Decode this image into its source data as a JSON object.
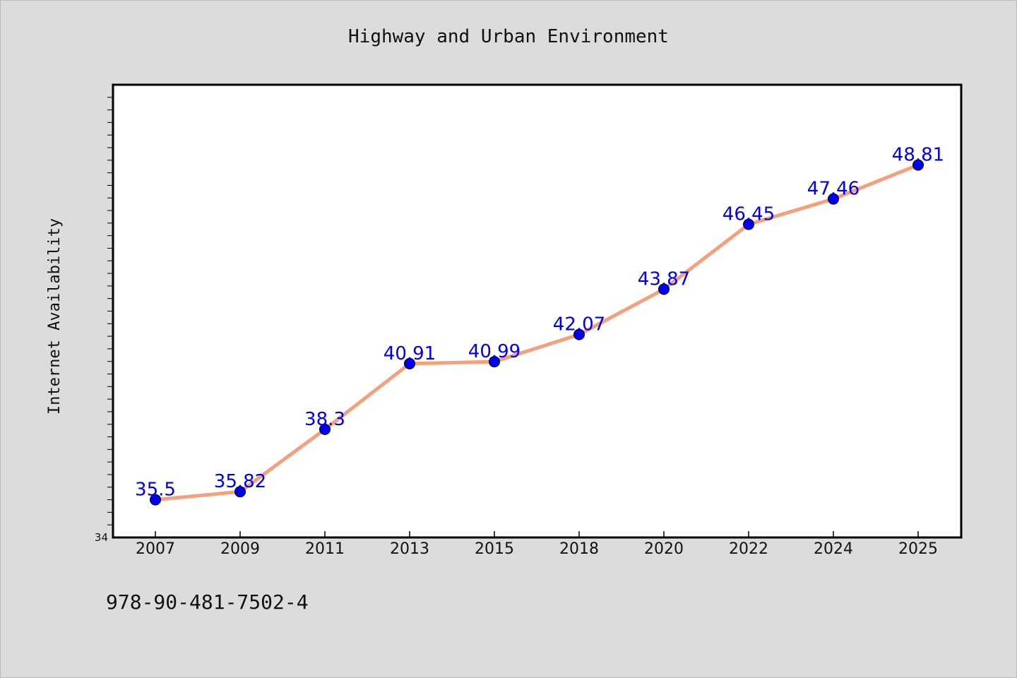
{
  "chart_data": {
    "type": "line",
    "title": "Highway and Urban Environment",
    "xlabel": "",
    "ylabel": "Internet Availability",
    "categories": [
      "2007",
      "2009",
      "2011",
      "2013",
      "2015",
      "2018",
      "2020",
      "2022",
      "2024",
      "2025"
    ],
    "series": [
      {
        "values": [
          35.5,
          35.82,
          38.3,
          40.91,
          40.99,
          42.07,
          43.87,
          46.45,
          47.46,
          48.81
        ],
        "data_labels": [
          "35.5",
          "35.82",
          "38.3",
          "40.91",
          "40.99",
          "42.07",
          "43.87",
          "46.45",
          "47.46",
          "48.81"
        ]
      }
    ],
    "ylim": [
      34,
      52
    ],
    "ytick_labels": [
      "34"
    ],
    "grid": false,
    "legend": "none",
    "colors": {
      "line": "#f4a07c",
      "marker": "#0000ee",
      "label": "#0000ee",
      "plot_bg": "#ffffff",
      "page_bg": "#dcdcdc"
    }
  },
  "footer": {
    "isbn": "978-90-481-7502-4"
  }
}
